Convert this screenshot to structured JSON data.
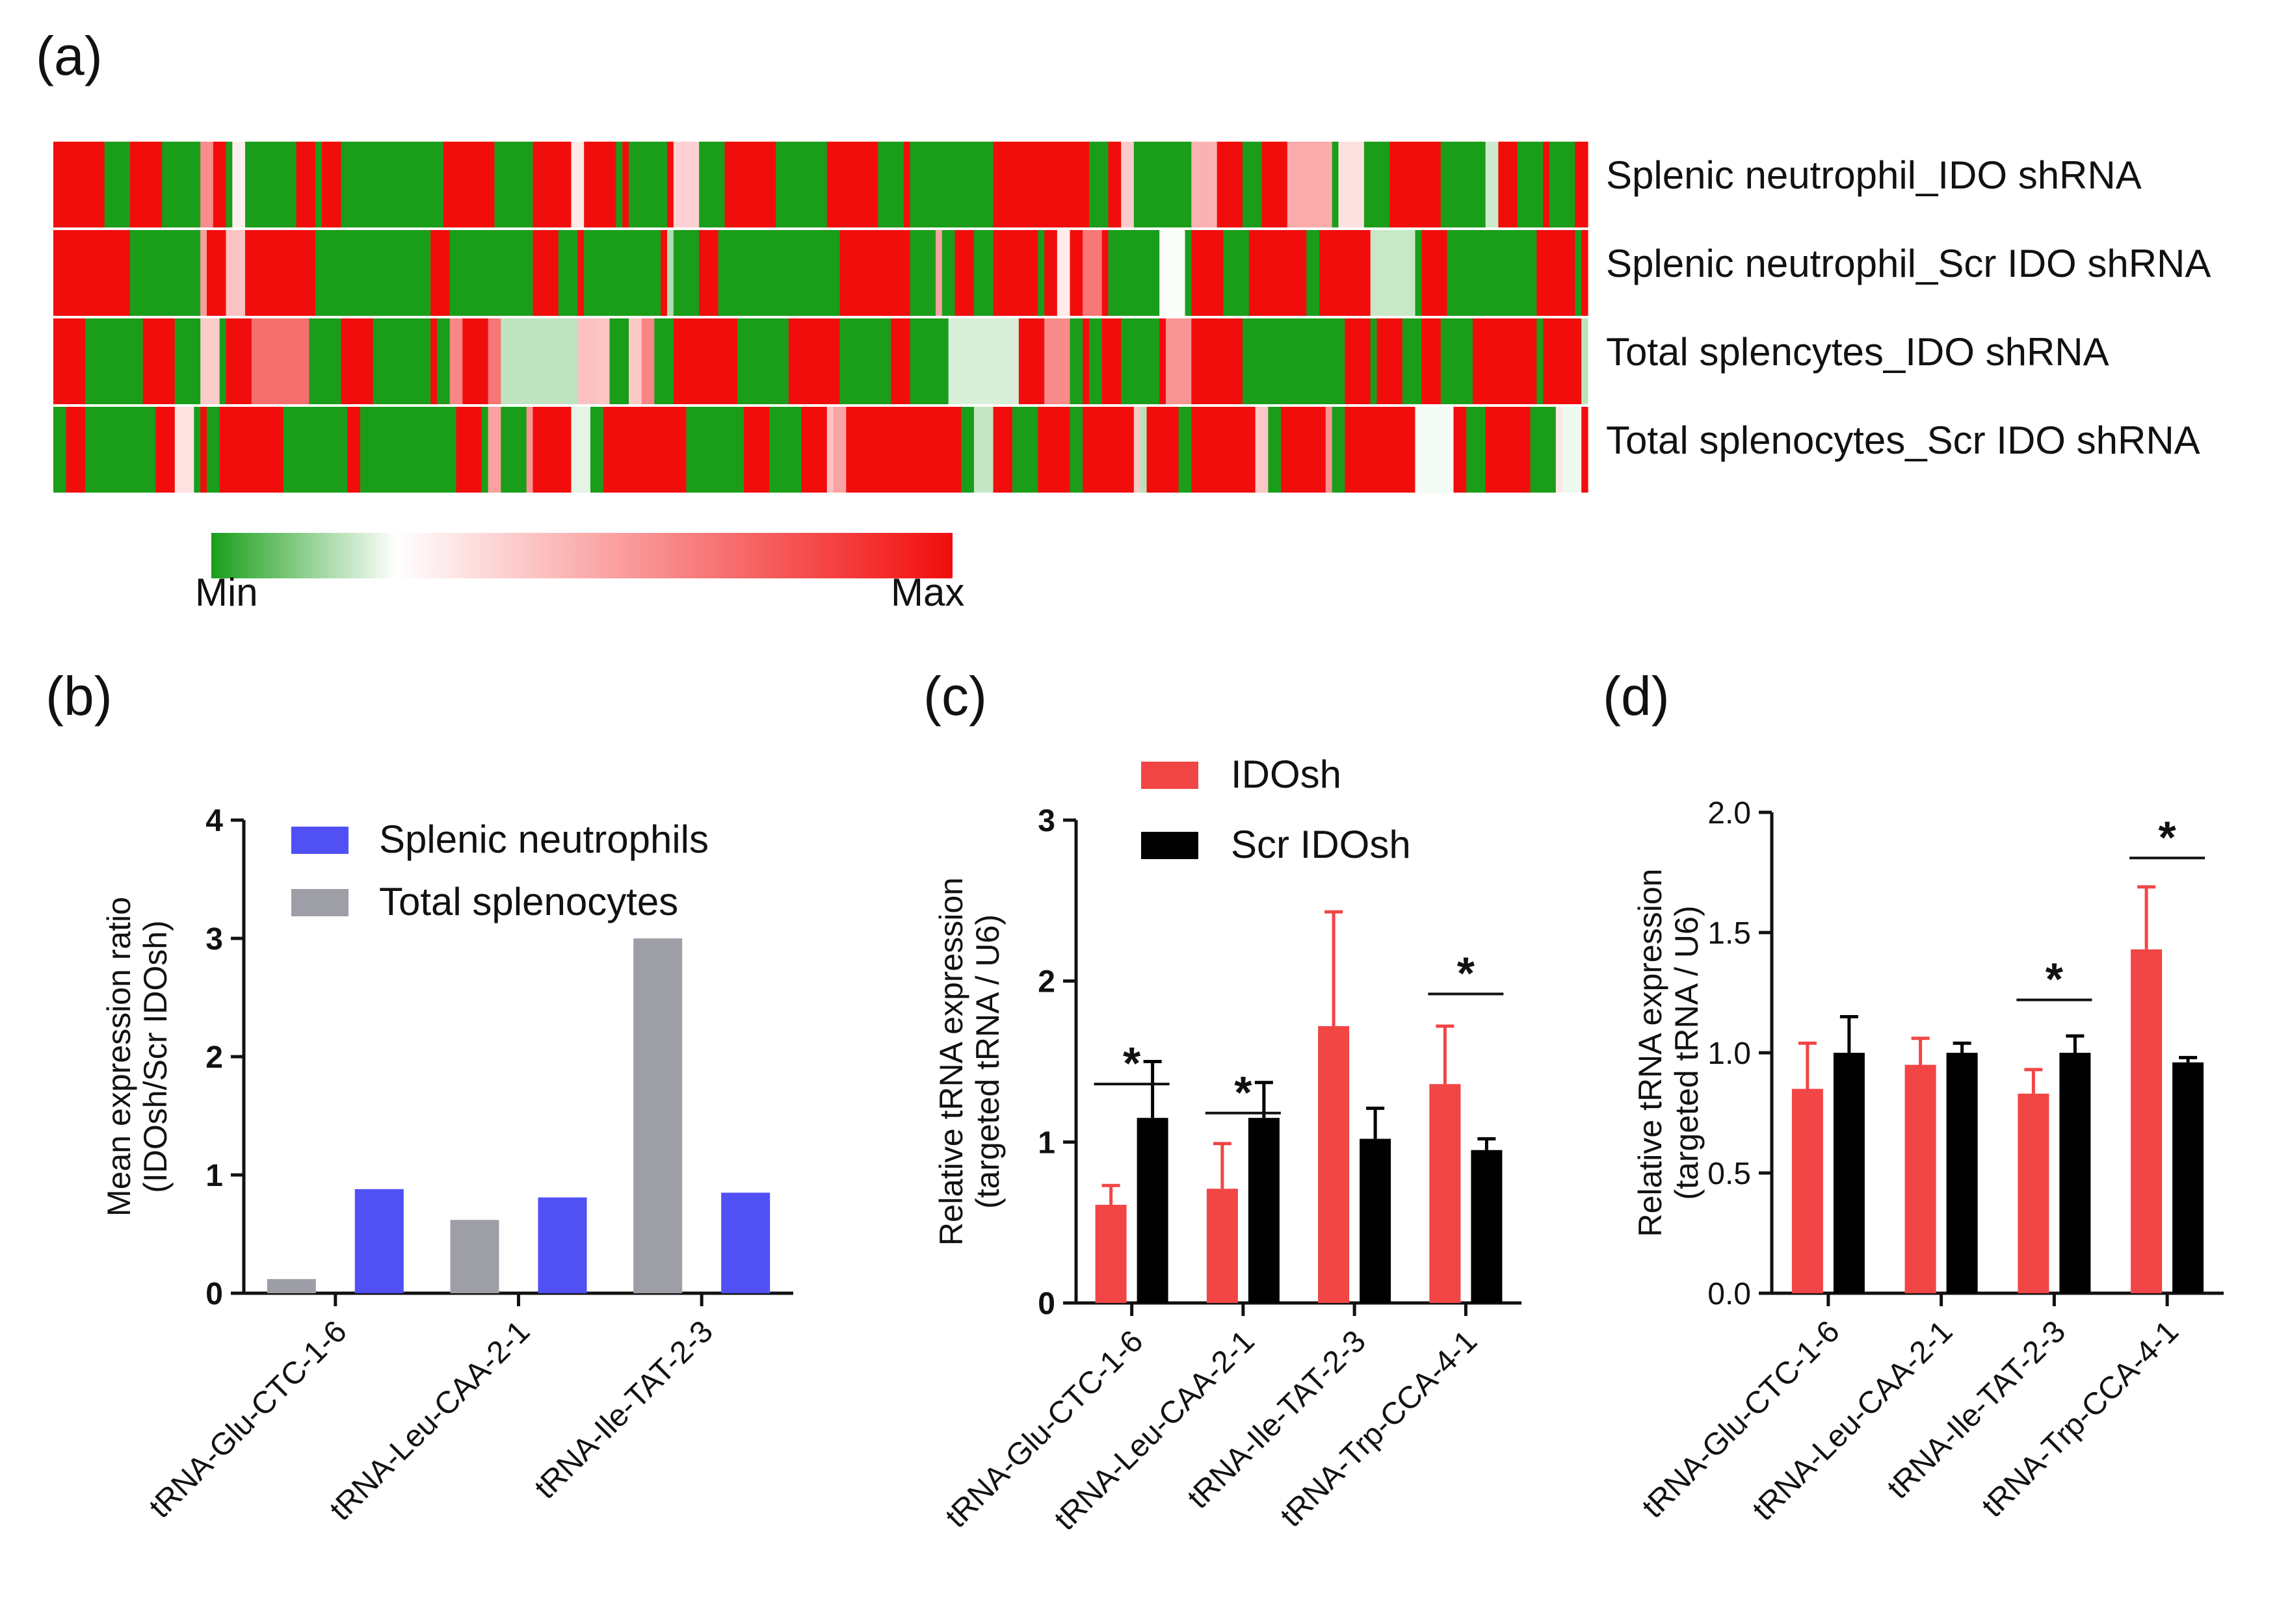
{
  "figure": {
    "panels": {
      "a": "(a)",
      "b": "(b)",
      "c": "(c)",
      "d": "(d)"
    }
  },
  "heatmap": {
    "rows": [
      "Splenic  neutrophil_IDO  shRNA",
      "Splenic  neutrophil_Scr IDO shRNA",
      "Total  splencytes_IDO  shRNA",
      "Total  splenocytes_Scr  IDO shRNA"
    ],
    "scale": {
      "min_label": "Min",
      "max_label": "Max",
      "low_color": "#1a9e1a",
      "mid_color": "#ffffff",
      "high_color": "#f20d0d"
    },
    "n_columns": 240
  },
  "chart_data": [
    {
      "id": "b",
      "type": "bar",
      "title": "",
      "xlabel": "",
      "ylabel": "Mean expression ratio",
      "ylabel2": "(IDOsh/Scr IDOsh)",
      "ylim": [
        0,
        4
      ],
      "yticks": [
        "0",
        "1",
        "2",
        "3",
        "4"
      ],
      "categories": [
        "tRNA-Glu-CTC-1-6",
        "tRNA-Leu-CAA-2-1",
        "tRNA-Ile-TAT-2-3"
      ],
      "series": [
        {
          "name": "Total splenocytes",
          "color": "#9e9ea6",
          "values": [
            0.12,
            0.62,
            3.0
          ]
        },
        {
          "name": "Splenic neutrophils",
          "color": "#5050f5",
          "values": [
            0.88,
            0.81,
            0.85
          ]
        }
      ],
      "legend": [
        {
          "name": "Splenic neutrophils",
          "color": "#5050f5"
        },
        {
          "name": "Total splenocytes",
          "color": "#9e9ea6"
        }
      ],
      "legend_position": "top-right"
    },
    {
      "id": "c",
      "type": "bar",
      "title": "",
      "xlabel": "",
      "ylabel": "Relative tRNA expression",
      "ylabel2": "(targeted tRNA / U6)",
      "ylim": [
        0,
        3
      ],
      "yticks": [
        "0",
        "1",
        "2",
        "3"
      ],
      "categories": [
        "tRNA-Glu-CTC-1-6",
        "tRNA-Leu-CAA-2-1",
        "tRNA-Ile-TAT-2-3",
        "tRNA-Trp-CCA-4-1"
      ],
      "series": [
        {
          "name": "IDOsh",
          "color": "#f24545",
          "values": [
            0.61,
            0.71,
            1.72,
            1.36
          ],
          "errors": [
            0.12,
            0.28,
            0.71,
            0.36
          ]
        },
        {
          "name": "Scr IDOsh",
          "color": "#000000",
          "values": [
            1.15,
            1.15,
            1.02,
            0.95
          ],
          "errors": [
            0.35,
            0.22,
            0.19,
            0.07
          ]
        }
      ],
      "significance": [
        {
          "category_index": 0,
          "label": "*",
          "y": 1.36
        },
        {
          "category_index": 1,
          "label": "*",
          "y": 1.18
        },
        {
          "category_index": 3,
          "label": "*",
          "y": 1.92
        }
      ],
      "legend_position": "top-left"
    },
    {
      "id": "d",
      "type": "bar",
      "title": "",
      "xlabel": "",
      "ylabel": "Relative tRNA expression",
      "ylabel2": "(targeted tRNA / U6)",
      "ylim": [
        0,
        2.0
      ],
      "yticks": [
        "0.0",
        "0.5",
        "1.0",
        "1.5",
        "2.0"
      ],
      "categories": [
        "tRNA-Glu-CTC-1-6",
        "tRNA-Leu-CAA-2-1",
        "tRNA-Ile-TAT-2-3",
        "tRNA-Trp-CCA-4-1"
      ],
      "series": [
        {
          "name": "IDOsh",
          "color": "#f24545",
          "values": [
            0.85,
            0.95,
            0.83,
            1.43
          ],
          "errors": [
            0.19,
            0.11,
            0.1,
            0.26
          ]
        },
        {
          "name": "Scr IDOsh",
          "color": "#000000",
          "values": [
            1.0,
            1.0,
            1.0,
            0.96
          ],
          "errors": [
            0.15,
            0.04,
            0.07,
            0.02
          ]
        }
      ],
      "significance": [
        {
          "category_index": 2,
          "label": "*",
          "y": 1.22
        },
        {
          "category_index": 3,
          "label": "*",
          "y": 1.81
        }
      ]
    }
  ]
}
